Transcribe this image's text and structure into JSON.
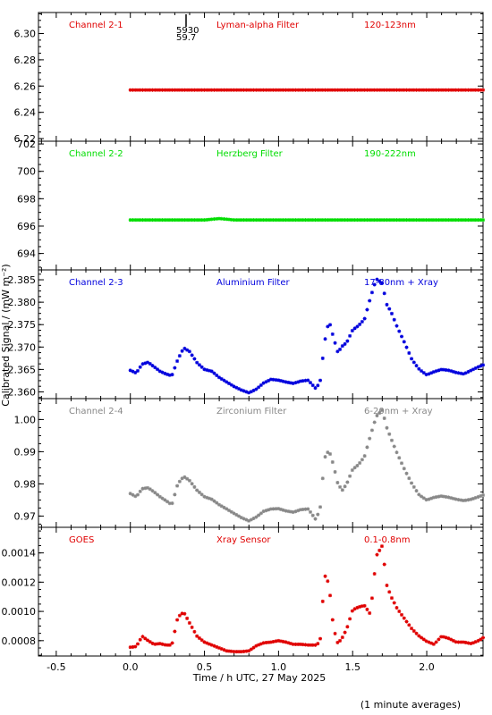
{
  "figure": {
    "xlabel": "Time / h UTC, 27 May 2025",
    "ylabel": "Calibrated Signal / (mW m⁻²)",
    "footnote": "(1 minute averages)",
    "marker_annotation": [
      "5930",
      "59.7"
    ]
  },
  "chart_data": [
    {
      "type": "scatter",
      "channel": "Channel 2-1",
      "filter": "Lyman-alpha Filter",
      "band": "120-123nm",
      "color": "#e00000",
      "xlim": [
        -0.62,
        2.38
      ],
      "ylim": [
        6.218,
        6.316
      ],
      "yticks": [
        6.22,
        6.24,
        6.26,
        6.28,
        6.3
      ],
      "ytick_labels": [
        "6.22",
        "6.24",
        "6.26",
        "6.28",
        "6.30"
      ],
      "x": [
        0.0,
        0.1,
        0.2,
        0.3,
        0.4,
        0.5,
        0.6,
        0.7,
        0.8,
        0.9,
        1.0,
        1.1,
        1.2,
        1.3,
        1.4,
        1.5,
        1.6,
        1.7,
        1.8,
        1.9,
        2.0,
        2.1,
        2.2,
        2.3,
        2.38
      ],
      "y": [
        6.257,
        6.257,
        6.257,
        6.257,
        6.257,
        6.257,
        6.257,
        6.257,
        6.257,
        6.257,
        6.257,
        6.257,
        6.257,
        6.257,
        6.257,
        6.257,
        6.257,
        6.257,
        6.257,
        6.257,
        6.257,
        6.257,
        6.257,
        6.257,
        6.257
      ]
    },
    {
      "type": "scatter",
      "channel": "Channel 2-2",
      "filter": "Herzberg Filter",
      "band": "190-222nm",
      "color": "#00dd00",
      "xlim": [
        -0.62,
        2.38
      ],
      "ylim": [
        692.8,
        702.2
      ],
      "yticks": [
        694,
        696,
        698,
        700,
        702
      ],
      "ytick_labels": [
        "694",
        "696",
        "698",
        "700",
        "702"
      ],
      "x": [
        0.0,
        0.1,
        0.2,
        0.3,
        0.4,
        0.5,
        0.6,
        0.7,
        0.8,
        0.9,
        1.0,
        1.1,
        1.2,
        1.3,
        1.4,
        1.5,
        1.6,
        1.7,
        1.8,
        1.9,
        2.0,
        2.1,
        2.2,
        2.3,
        2.38
      ],
      "y": [
        696.45,
        696.45,
        696.45,
        696.45,
        696.45,
        696.45,
        696.55,
        696.45,
        696.45,
        696.45,
        696.45,
        696.45,
        696.45,
        696.45,
        696.45,
        696.45,
        696.45,
        696.45,
        696.45,
        696.45,
        696.45,
        696.45,
        696.45,
        696.45,
        696.45
      ]
    },
    {
      "type": "scatter",
      "channel": "Channel 2-3",
      "filter": "Aluminium Filter",
      "band": "17-80nm + Xray",
      "color": "#0000dd",
      "xlim": [
        -0.62,
        2.38
      ],
      "ylim": [
        2.3585,
        2.3872
      ],
      "yticks": [
        2.36,
        2.365,
        2.37,
        2.375,
        2.38,
        2.385
      ],
      "ytick_labels": [
        "2.360",
        "2.365",
        "2.370",
        "2.375",
        "2.380",
        "2.385"
      ],
      "x": [
        0.0,
        0.04,
        0.08,
        0.12,
        0.16,
        0.2,
        0.24,
        0.28,
        0.32,
        0.36,
        0.4,
        0.45,
        0.5,
        0.55,
        0.6,
        0.65,
        0.7,
        0.75,
        0.8,
        0.85,
        0.9,
        0.95,
        1.0,
        1.05,
        1.1,
        1.15,
        1.2,
        1.25,
        1.28,
        1.31,
        1.34,
        1.37,
        1.4,
        1.43,
        1.46,
        1.5,
        1.54,
        1.58,
        1.62,
        1.66,
        1.7,
        1.73,
        1.76,
        1.8,
        1.85,
        1.9,
        1.95,
        2.0,
        2.05,
        2.1,
        2.15,
        2.2,
        2.25,
        2.3,
        2.35,
        2.38
      ],
      "y": [
        2.3648,
        2.3642,
        2.3662,
        2.3666,
        2.3656,
        2.3646,
        2.364,
        2.3636,
        2.3672,
        2.3698,
        2.369,
        2.3665,
        2.365,
        2.3646,
        2.3632,
        2.3622,
        2.3612,
        2.3604,
        2.3598,
        2.3606,
        2.362,
        2.3628,
        2.3626,
        2.3622,
        2.3619,
        2.3624,
        2.3626,
        2.3608,
        2.3621,
        2.371,
        2.376,
        2.3722,
        2.3688,
        2.3702,
        2.371,
        2.3738,
        2.3748,
        2.3762,
        2.381,
        2.3852,
        2.3842,
        2.3795,
        2.3778,
        2.3745,
        2.371,
        2.3672,
        2.365,
        2.3638,
        2.3645,
        2.365,
        2.3648,
        2.3643,
        2.364,
        2.3648,
        2.3656,
        2.366
      ]
    },
    {
      "type": "scatter",
      "channel": "Channel 2-4",
      "filter": "Zirconium Filter",
      "band": "6-20nm + Xray",
      "color": "#888888",
      "xlim": [
        -0.62,
        2.38
      ],
      "ylim": [
        0.9665,
        1.0065
      ],
      "yticks": [
        0.97,
        0.98,
        0.99,
        1.0
      ],
      "ytick_labels": [
        "0.97",
        "0.98",
        "0.99",
        "1.00"
      ],
      "x": [
        0.0,
        0.04,
        0.08,
        0.12,
        0.16,
        0.2,
        0.24,
        0.28,
        0.32,
        0.36,
        0.4,
        0.45,
        0.5,
        0.55,
        0.6,
        0.65,
        0.7,
        0.75,
        0.8,
        0.85,
        0.9,
        0.95,
        1.0,
        1.05,
        1.1,
        1.15,
        1.2,
        1.25,
        1.28,
        1.31,
        1.34,
        1.37,
        1.4,
        1.43,
        1.46,
        1.5,
        1.54,
        1.58,
        1.62,
        1.66,
        1.7,
        1.73,
        1.76,
        1.8,
        1.85,
        1.9,
        1.95,
        2.0,
        2.05,
        2.1,
        2.15,
        2.2,
        2.25,
        2.3,
        2.35,
        2.38
      ],
      "y": [
        0.977,
        0.976,
        0.9785,
        0.9788,
        0.9775,
        0.976,
        0.9748,
        0.9735,
        0.98,
        0.9823,
        0.981,
        0.978,
        0.976,
        0.9752,
        0.9735,
        0.9722,
        0.9708,
        0.9695,
        0.9685,
        0.9697,
        0.9715,
        0.9722,
        0.9723,
        0.9716,
        0.9712,
        0.972,
        0.9722,
        0.969,
        0.972,
        0.988,
        0.9905,
        0.986,
        0.98,
        0.978,
        0.98,
        0.9845,
        0.986,
        0.9885,
        0.995,
        1.001,
        1.003,
        0.9975,
        0.994,
        0.9895,
        0.9845,
        0.98,
        0.9765,
        0.975,
        0.9758,
        0.9762,
        0.9758,
        0.9752,
        0.9748,
        0.9752,
        0.976,
        0.9765
      ]
    },
    {
      "type": "scatter",
      "channel": "GOES",
      "filter": "Xray Sensor",
      "band": "0.1-0.8nm",
      "color": "#e00000",
      "xlim": [
        -0.62,
        2.38
      ],
      "ylim": [
        0.000695,
        0.001575
      ],
      "yticks": [
        0.0008,
        0.001,
        0.0012,
        0.0014
      ],
      "ytick_labels": [
        "0.0008",
        "0.0010",
        "0.0012",
        "0.0014"
      ],
      "x": [
        0.0,
        0.04,
        0.08,
        0.12,
        0.16,
        0.2,
        0.24,
        0.28,
        0.32,
        0.36,
        0.4,
        0.45,
        0.5,
        0.55,
        0.6,
        0.65,
        0.7,
        0.75,
        0.8,
        0.85,
        0.9,
        0.95,
        1.0,
        1.05,
        1.1,
        1.15,
        1.2,
        1.25,
        1.28,
        1.31,
        1.34,
        1.37,
        1.4,
        1.43,
        1.46,
        1.5,
        1.54,
        1.58,
        1.62,
        1.66,
        1.7,
        1.73,
        1.76,
        1.8,
        1.85,
        1.9,
        1.95,
        2.0,
        2.05,
        2.1,
        2.15,
        2.2,
        2.25,
        2.3,
        2.35,
        2.38
      ],
      "y": [
        0.000755,
        0.00076,
        0.00083,
        0.0008,
        0.000775,
        0.00078,
        0.00077,
        0.00077,
        0.00096,
        0.000995,
        0.00092,
        0.00083,
        0.00079,
        0.00077,
        0.00075,
        0.00073,
        0.000725,
        0.000725,
        0.00073,
        0.000765,
        0.000785,
        0.00079,
        0.0008,
        0.00079,
        0.000775,
        0.000775,
        0.00077,
        0.00077,
        0.00079,
        0.00125,
        0.00119,
        0.00089,
        0.00078,
        0.00082,
        0.00088,
        0.00101,
        0.00103,
        0.00104,
        0.00098,
        0.00138,
        0.00145,
        0.00118,
        0.0011,
        0.00102,
        0.00095,
        0.00088,
        0.00083,
        0.000795,
        0.000775,
        0.00083,
        0.000815,
        0.00079,
        0.00079,
        0.00078,
        0.0008,
        0.00082
      ]
    }
  ],
  "x_axis": {
    "xlim": [
      -0.62,
      2.38
    ],
    "ticks": [
      -0.5,
      0.0,
      0.5,
      1.0,
      1.5,
      2.0
    ],
    "tick_labels": [
      "-0.5",
      "0.0",
      "0.5",
      "1.0",
      "1.5",
      "2.0"
    ]
  }
}
